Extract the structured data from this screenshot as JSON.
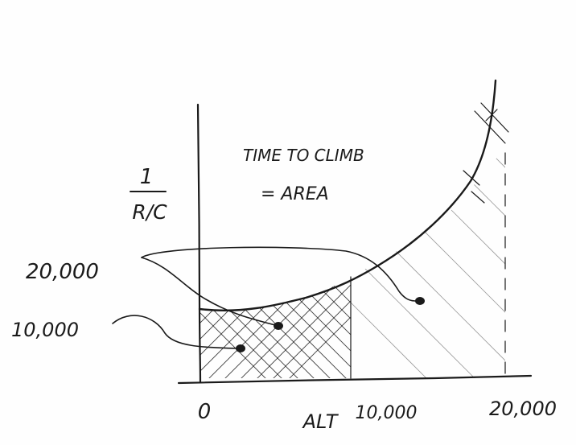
{
  "diagram": {
    "title_line1": "TIME TO CLIMB",
    "title_line2": "= AREA",
    "y_axis_label_numerator": "1",
    "y_axis_label_denominator": "R/C",
    "x_axis_label": "ALT",
    "x_ticks": [
      "0",
      "10,000",
      "20,000"
    ],
    "callouts": [
      "20,000",
      "10,000"
    ]
  }
}
